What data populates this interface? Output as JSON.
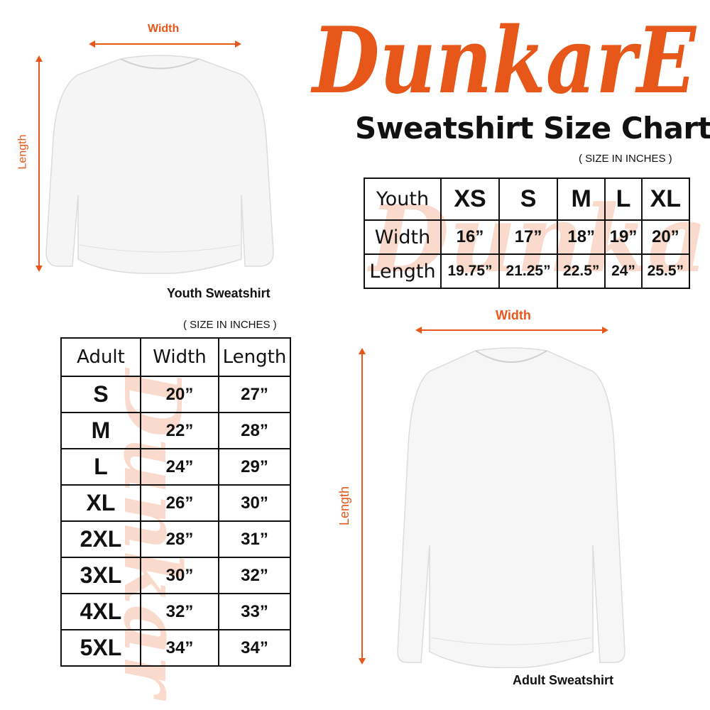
{
  "brand": {
    "logo_text": "DunkarE",
    "accent_color": "#e8571a"
  },
  "title": "Sweatshirt Size Chart",
  "youth": {
    "unit_note": "( SIZE IN INCHES )",
    "caption": "Youth Sweatshirt",
    "width_label": "Width",
    "length_label": "Length",
    "table": {
      "header": [
        "Youth",
        "XS",
        "S",
        "M",
        "L",
        "XL"
      ],
      "rows": [
        [
          "Width",
          "16”",
          "17”",
          "18”",
          "19”",
          "20”"
        ],
        [
          "Length",
          "19.75”",
          "21.25”",
          "22.5”",
          "24”",
          "25.5”"
        ]
      ]
    }
  },
  "adult": {
    "unit_note": "( SIZE IN INCHES )",
    "caption": "Adult Sweatshirt",
    "width_label": "Width",
    "length_label": "Length",
    "table": {
      "header": [
        "Adult",
        "Width",
        "Length"
      ],
      "rows": [
        [
          "S",
          "20”",
          "27”"
        ],
        [
          "M",
          "22”",
          "28”"
        ],
        [
          "L",
          "24”",
          "29”"
        ],
        [
          "XL",
          "26”",
          "30”"
        ],
        [
          "2XL",
          "28”",
          "31”"
        ],
        [
          "3XL",
          "30”",
          "32”"
        ],
        [
          "4XL",
          "32”",
          "33”"
        ],
        [
          "5XL",
          "34”",
          "34”"
        ]
      ]
    }
  }
}
